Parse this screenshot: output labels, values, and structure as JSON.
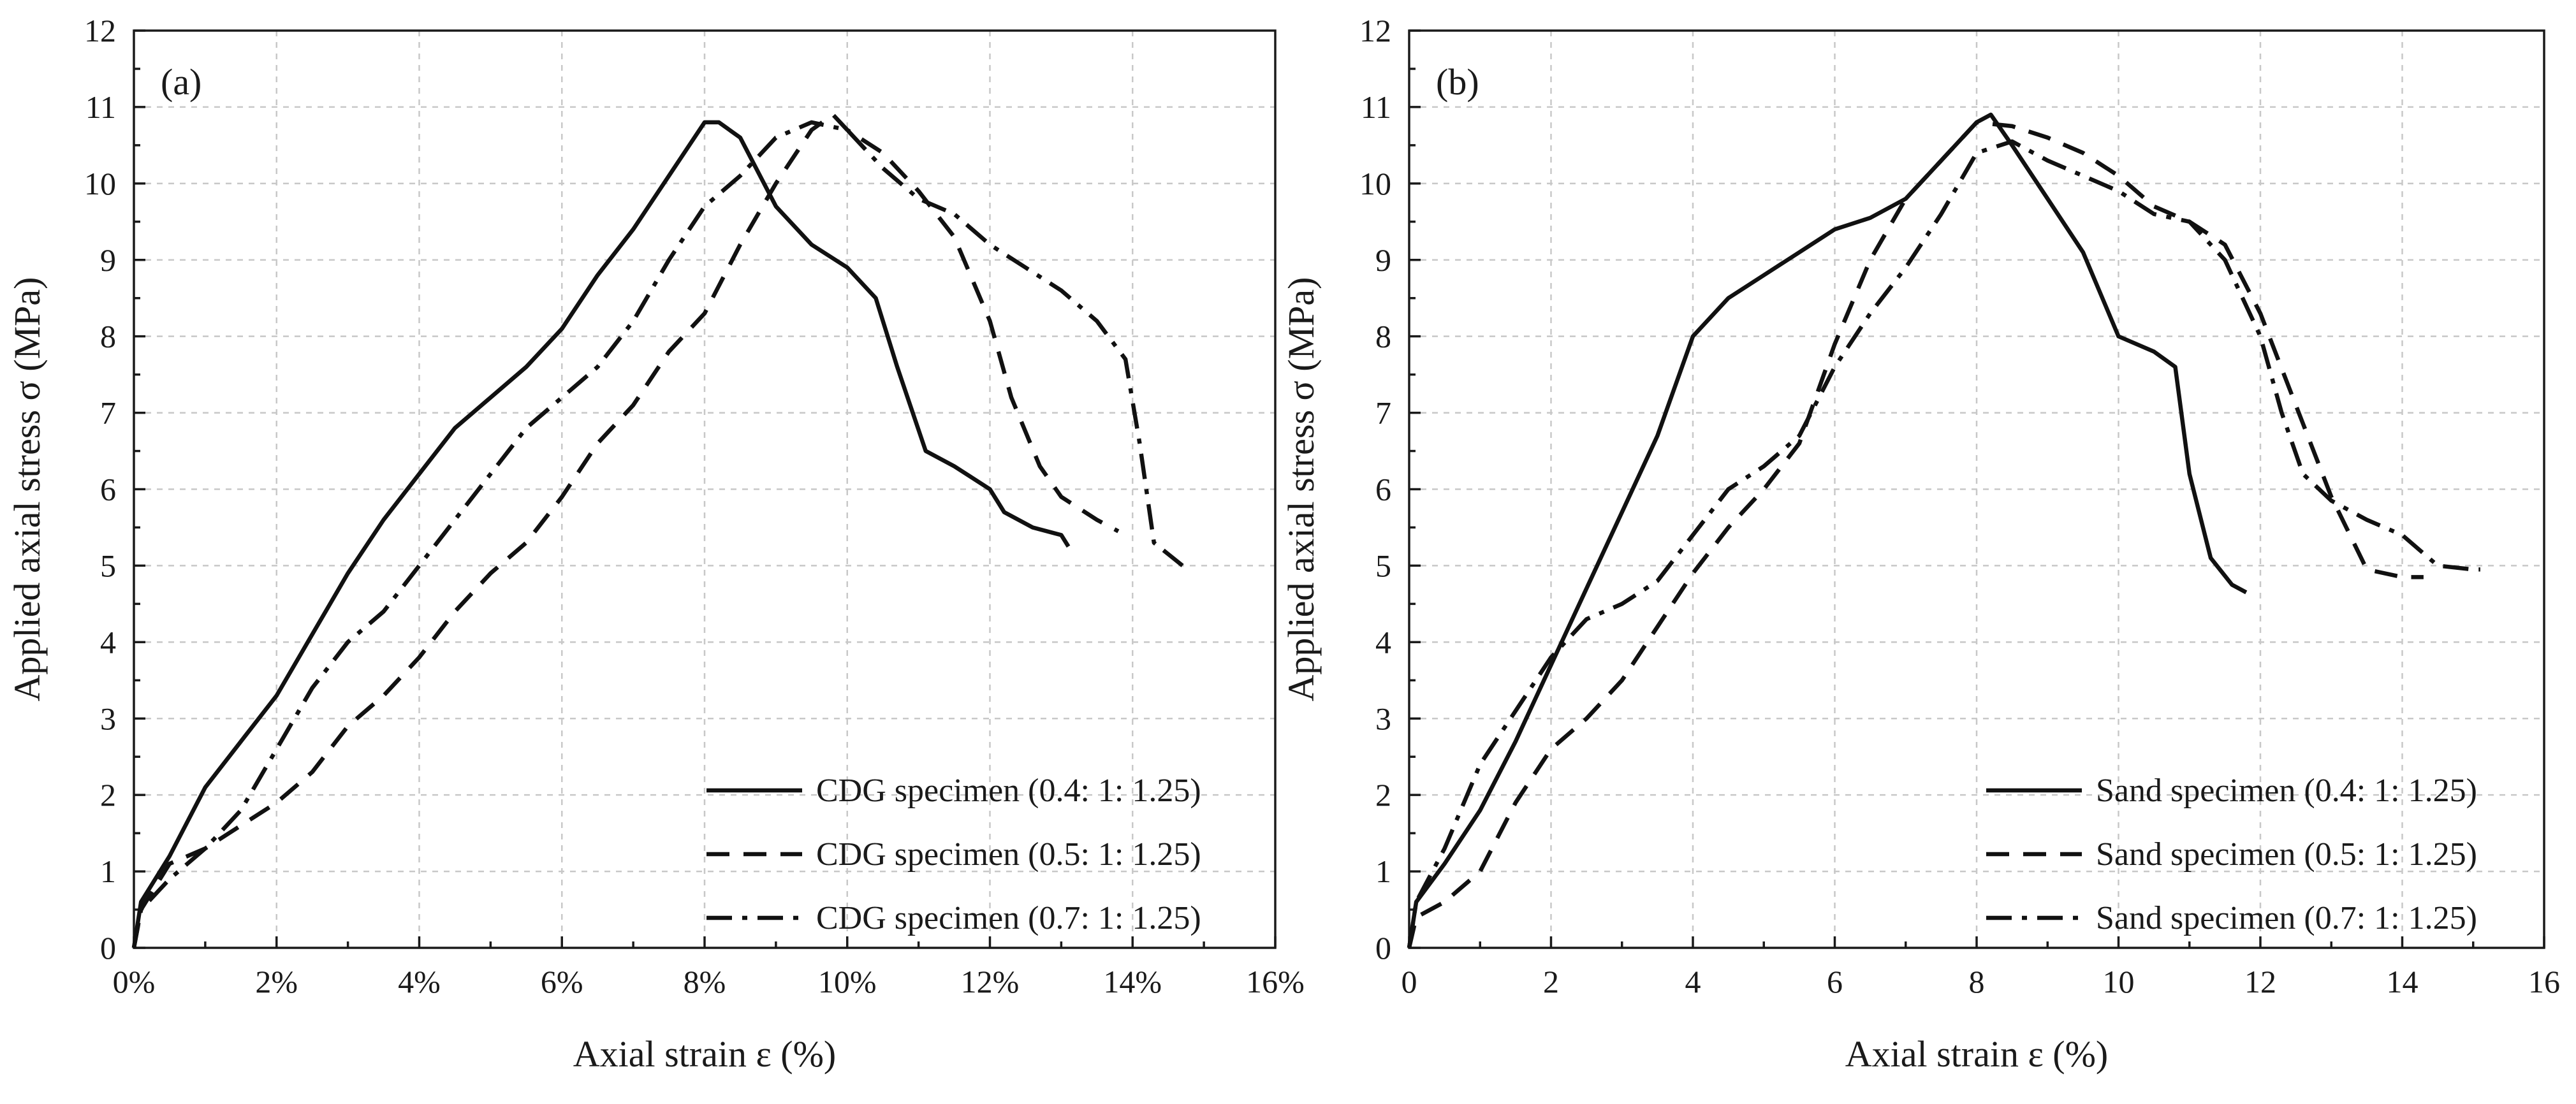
{
  "chart_data": [
    {
      "type": "line",
      "panel_label": "(a)",
      "xlabel": "Axial strain ε (%)",
      "ylabel": "Applied axial stress σ (MPa)",
      "xlim": [
        0,
        16
      ],
      "ylim": [
        0,
        12
      ],
      "x_ticks": [
        0,
        2,
        4,
        6,
        8,
        10,
        12,
        14,
        16
      ],
      "x_tick_labels": [
        "0%",
        "2%",
        "4%",
        "6%",
        "8%",
        "10%",
        "12%",
        "14%",
        "16%"
      ],
      "y_ticks": [
        0,
        1,
        2,
        3,
        4,
        5,
        6,
        7,
        8,
        9,
        10,
        11,
        12
      ],
      "y_tick_labels": [
        "0",
        "1",
        "2",
        "3",
        "4",
        "5",
        "6",
        "7",
        "8",
        "9",
        "10",
        "11",
        "12"
      ],
      "grid": true,
      "legend_position": "bottom-right",
      "series": [
        {
          "name": "CDG specimen (0.4: 1: 1.25)",
          "style": "solid",
          "points": [
            [
              0,
              0
            ],
            [
              0.1,
              0.6
            ],
            [
              0.5,
              1.2
            ],
            [
              1,
              2.1
            ],
            [
              1.5,
              2.7
            ],
            [
              2,
              3.3
            ],
            [
              2.5,
              4.1
            ],
            [
              3,
              4.9
            ],
            [
              3.5,
              5.6
            ],
            [
              4,
              6.2
            ],
            [
              4.5,
              6.8
            ],
            [
              5,
              7.2
            ],
            [
              5.5,
              7.6
            ],
            [
              6,
              8.1
            ],
            [
              6.5,
              8.8
            ],
            [
              7,
              9.4
            ],
            [
              7.5,
              10.1
            ],
            [
              8,
              10.8
            ],
            [
              8.2,
              10.8
            ],
            [
              8.5,
              10.6
            ],
            [
              9,
              9.7
            ],
            [
              9.5,
              9.2
            ],
            [
              10,
              8.9
            ],
            [
              10.4,
              8.5
            ],
            [
              10.7,
              7.6
            ],
            [
              11.1,
              6.5
            ],
            [
              11.5,
              6.3
            ],
            [
              12,
              6.0
            ],
            [
              12.2,
              5.7
            ],
            [
              12.6,
              5.5
            ],
            [
              13,
              5.4
            ],
            [
              13.1,
              5.25
            ]
          ]
        },
        {
          "name": "CDG specimen (0.5: 1: 1.25)",
          "style": "dashed",
          "points": [
            [
              0,
              0
            ],
            [
              0.1,
              0.5
            ],
            [
              0.5,
              1.1
            ],
            [
              1,
              1.3
            ],
            [
              1.5,
              1.6
            ],
            [
              2,
              1.9
            ],
            [
              2.5,
              2.3
            ],
            [
              3,
              2.9
            ],
            [
              3.5,
              3.3
            ],
            [
              4,
              3.8
            ],
            [
              4.5,
              4.4
            ],
            [
              5,
              4.9
            ],
            [
              5.5,
              5.3
            ],
            [
              6,
              5.9
            ],
            [
              6.5,
              6.6
            ],
            [
              7,
              7.1
            ],
            [
              7.5,
              7.8
            ],
            [
              8,
              8.3
            ],
            [
              8.5,
              9.2
            ],
            [
              9,
              10.0
            ],
            [
              9.5,
              10.7
            ],
            [
              9.8,
              10.9
            ],
            [
              10,
              10.7
            ],
            [
              10.5,
              10.4
            ],
            [
              11,
              9.9
            ],
            [
              11.5,
              9.3
            ],
            [
              12,
              8.2
            ],
            [
              12.3,
              7.2
            ],
            [
              12.7,
              6.3
            ],
            [
              13,
              5.9
            ],
            [
              13.5,
              5.6
            ],
            [
              13.8,
              5.45
            ]
          ]
        },
        {
          "name": "CDG specimen (0.7: 1: 1.25)",
          "style": "dash-dot",
          "points": [
            [
              0,
              0
            ],
            [
              0.1,
              0.5
            ],
            [
              0.5,
              0.9
            ],
            [
              1,
              1.3
            ],
            [
              1.5,
              1.8
            ],
            [
              2,
              2.6
            ],
            [
              2.5,
              3.4
            ],
            [
              3,
              4.0
            ],
            [
              3.5,
              4.4
            ],
            [
              4,
              5.0
            ],
            [
              4.5,
              5.6
            ],
            [
              5,
              6.2
            ],
            [
              5.5,
              6.8
            ],
            [
              6,
              7.2
            ],
            [
              6.5,
              7.6
            ],
            [
              7,
              8.2
            ],
            [
              7.5,
              9.0
            ],
            [
              8,
              9.7
            ],
            [
              8.5,
              10.1
            ],
            [
              9,
              10.6
            ],
            [
              9.5,
              10.8
            ],
            [
              10,
              10.7
            ],
            [
              10.5,
              10.2
            ],
            [
              11,
              9.8
            ],
            [
              11.5,
              9.6
            ],
            [
              12,
              9.2
            ],
            [
              12.5,
              8.9
            ],
            [
              13,
              8.6
            ],
            [
              13.5,
              8.2
            ],
            [
              13.9,
              7.7
            ],
            [
              14.1,
              6.6
            ],
            [
              14.3,
              5.3
            ],
            [
              14.5,
              5.15
            ],
            [
              14.7,
              5.0
            ]
          ]
        }
      ]
    },
    {
      "type": "line",
      "panel_label": "(b)",
      "xlabel": "Axial strain ε (%)",
      "ylabel": "Applied axial stress σ (MPa)",
      "xlim": [
        0,
        16
      ],
      "ylim": [
        0,
        12
      ],
      "x_ticks": [
        0,
        2,
        4,
        6,
        8,
        10,
        12,
        14,
        16
      ],
      "x_tick_labels": [
        "0",
        "2",
        "4",
        "6",
        "8",
        "10",
        "12",
        "14",
        "16"
      ],
      "y_ticks": [
        0,
        1,
        2,
        3,
        4,
        5,
        6,
        7,
        8,
        9,
        10,
        11,
        12
      ],
      "y_tick_labels": [
        "0",
        "1",
        "2",
        "3",
        "4",
        "5",
        "6",
        "7",
        "8",
        "9",
        "10",
        "11",
        "12"
      ],
      "grid": true,
      "legend_position": "bottom-right",
      "series": [
        {
          "name": "Sand specimen (0.4: 1: 1.25)",
          "style": "solid",
          "points": [
            [
              0,
              0
            ],
            [
              0.1,
              0.6
            ],
            [
              0.5,
              1.1
            ],
            [
              1,
              1.8
            ],
            [
              1.5,
              2.7
            ],
            [
              2,
              3.7
            ],
            [
              2.5,
              4.7
            ],
            [
              3,
              5.7
            ],
            [
              3.5,
              6.7
            ],
            [
              4,
              8.0
            ],
            [
              4.5,
              8.5
            ],
            [
              5,
              8.8
            ],
            [
              5.5,
              9.1
            ],
            [
              6,
              9.4
            ],
            [
              6.5,
              9.55
            ],
            [
              7,
              9.8
            ],
            [
              7.5,
              10.3
            ],
            [
              8,
              10.8
            ],
            [
              8.2,
              10.9
            ],
            [
              8.5,
              10.5
            ],
            [
              9,
              9.8
            ],
            [
              9.5,
              9.1
            ],
            [
              10,
              8.0
            ],
            [
              10.5,
              7.8
            ],
            [
              10.8,
              7.6
            ],
            [
              11,
              6.2
            ],
            [
              11.3,
              5.1
            ],
            [
              11.6,
              4.75
            ],
            [
              11.8,
              4.65
            ]
          ]
        },
        {
          "name": "Sand specimen (0.5: 1: 1.25)",
          "style": "dashed",
          "points": [
            [
              0,
              0
            ],
            [
              0.1,
              0.4
            ],
            [
              0.5,
              0.6
            ],
            [
              1,
              1.0
            ],
            [
              1.5,
              1.9
            ],
            [
              2,
              2.6
            ],
            [
              2.5,
              3.0
            ],
            [
              3,
              3.5
            ],
            [
              3.5,
              4.2
            ],
            [
              4,
              4.9
            ],
            [
              4.5,
              5.5
            ],
            [
              5,
              6.0
            ],
            [
              5.5,
              6.6
            ],
            [
              6,
              7.9
            ],
            [
              6.5,
              9.0
            ],
            [
              7,
              9.8
            ],
            [
              7.5,
              10.3
            ],
            [
              8,
              10.8
            ],
            [
              8.5,
              10.75
            ],
            [
              9,
              10.6
            ],
            [
              9.5,
              10.4
            ],
            [
              10,
              10.1
            ],
            [
              10.5,
              9.7
            ],
            [
              11,
              9.5
            ],
            [
              11.5,
              9.2
            ],
            [
              12,
              8.3
            ],
            [
              12.5,
              7.1
            ],
            [
              13,
              5.9
            ],
            [
              13.5,
              4.95
            ],
            [
              14,
              4.85
            ],
            [
              14.3,
              4.85
            ]
          ]
        },
        {
          "name": "Sand specimen (0.7: 1: 1.25)",
          "style": "dash-dot",
          "points": [
            [
              0,
              0
            ],
            [
              0.1,
              0.6
            ],
            [
              0.5,
              1.3
            ],
            [
              1,
              2.4
            ],
            [
              1.5,
              3.1
            ],
            [
              2,
              3.8
            ],
            [
              2.5,
              4.3
            ],
            [
              3,
              4.5
            ],
            [
              3.5,
              4.8
            ],
            [
              4,
              5.4
            ],
            [
              4.5,
              6.0
            ],
            [
              5,
              6.3
            ],
            [
              5.5,
              6.7
            ],
            [
              6,
              7.6
            ],
            [
              6.5,
              8.3
            ],
            [
              7,
              8.9
            ],
            [
              7.5,
              9.6
            ],
            [
              8,
              10.4
            ],
            [
              8.5,
              10.55
            ],
            [
              9,
              10.3
            ],
            [
              9.5,
              10.1
            ],
            [
              10,
              9.9
            ],
            [
              10.5,
              9.6
            ],
            [
              11,
              9.5
            ],
            [
              11.5,
              9.0
            ],
            [
              12,
              8.0
            ],
            [
              12.3,
              7.0
            ],
            [
              12.6,
              6.2
            ],
            [
              13,
              5.85
            ],
            [
              13.5,
              5.6
            ],
            [
              14,
              5.4
            ],
            [
              14.5,
              5.0
            ],
            [
              15,
              4.95
            ],
            [
              15.1,
              4.95
            ]
          ]
        }
      ]
    }
  ]
}
